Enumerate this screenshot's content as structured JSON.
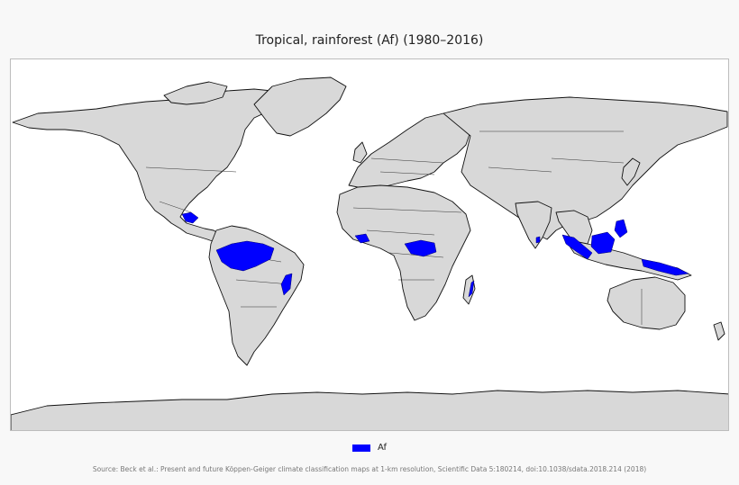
{
  "map": {
    "title": "Tropical, rainforest (Af) (1980–2016)",
    "legend": {
      "label": "Af",
      "color": "#0000ff"
    },
    "source": "Source: Beck et al.: Present and future Köppen-Geiger climate classification maps at 1-km resolution, Scientific Data 5:180214, doi:10.1038/sdata.2018.214 (2018)",
    "land_color": "#d8d8d8",
    "ocean_color": "#ffffff"
  }
}
